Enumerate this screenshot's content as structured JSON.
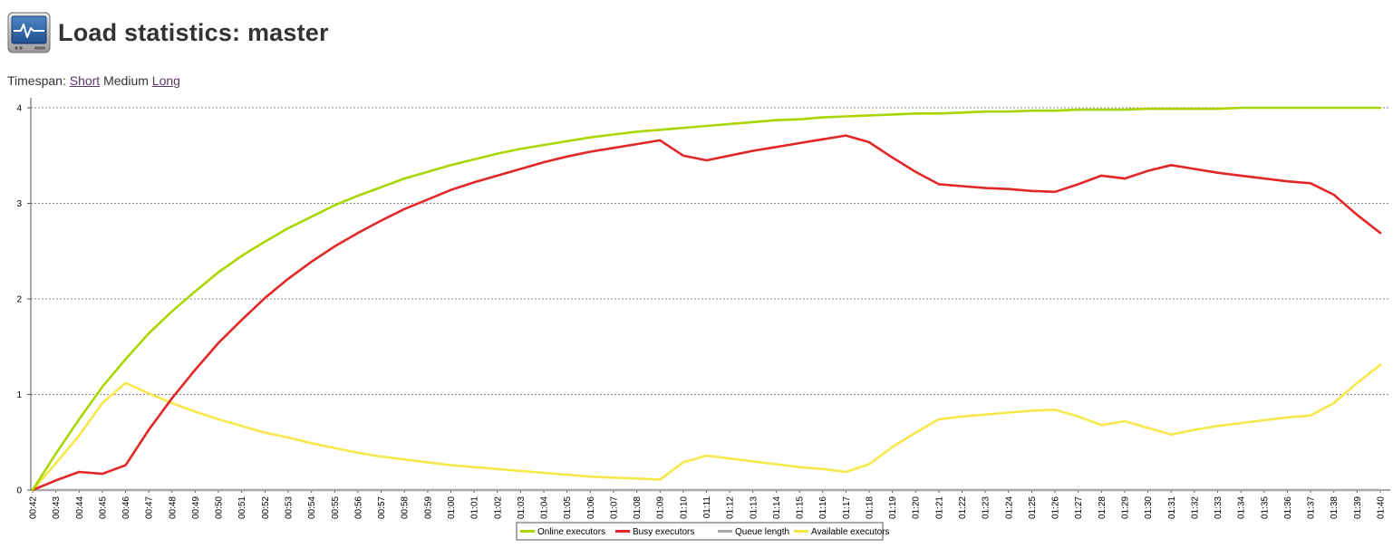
{
  "header": {
    "title": "Load statistics: master",
    "icon": "monitor-pulse-icon"
  },
  "timespan": {
    "label": "Timespan:",
    "options": [
      {
        "label": "Short",
        "link": true
      },
      {
        "label": "Medium",
        "link": false
      },
      {
        "label": "Long",
        "link": true
      }
    ],
    "selected": "Medium"
  },
  "chart_data": {
    "type": "line",
    "ylim": [
      0,
      4
    ],
    "yticks": [
      "0",
      "1",
      "2",
      "3",
      "4"
    ],
    "grid": true,
    "legend_position": "bottom",
    "categories": [
      "00:42",
      "00:43",
      "00:44",
      "00:45",
      "00:46",
      "00:47",
      "00:48",
      "00:49",
      "00:50",
      "00:51",
      "00:52",
      "00:53",
      "00:54",
      "00:55",
      "00:56",
      "00:57",
      "00:58",
      "00:59",
      "01:00",
      "01:01",
      "01:02",
      "01:03",
      "01:04",
      "01:05",
      "01:06",
      "01:07",
      "01:08",
      "01:09",
      "01:10",
      "01:11",
      "01:12",
      "01:13",
      "01:14",
      "01:15",
      "01:16",
      "01:17",
      "01:18",
      "01:19",
      "01:20",
      "01:21",
      "01:22",
      "01:23",
      "01:24",
      "01:25",
      "01:26",
      "01:27",
      "01:28",
      "01:29",
      "01:30",
      "01:31",
      "01:32",
      "01:33",
      "01:34",
      "01:35",
      "01:36",
      "01:37",
      "01:38",
      "01:39",
      "01:40"
    ],
    "series": [
      {
        "name": "Online executors",
        "color": "#aad600",
        "values": [
          0,
          0.38,
          0.74,
          1.08,
          1.37,
          1.64,
          1.87,
          2.08,
          2.28,
          2.45,
          2.6,
          2.74,
          2.86,
          2.98,
          3.08,
          3.17,
          3.26,
          3.33,
          3.4,
          3.46,
          3.52,
          3.57,
          3.61,
          3.65,
          3.69,
          3.72,
          3.75,
          3.77,
          3.79,
          3.81,
          3.83,
          3.85,
          3.87,
          3.88,
          3.9,
          3.91,
          3.92,
          3.93,
          3.94,
          3.94,
          3.95,
          3.96,
          3.96,
          3.97,
          3.97,
          3.98,
          3.98,
          3.98,
          3.99,
          3.99,
          3.99,
          3.99,
          4,
          4,
          4,
          4,
          4,
          4,
          4
        ]
      },
      {
        "name": "Busy executors",
        "color": "#e12727",
        "values": [
          0,
          0.1,
          0.19,
          0.17,
          0.26,
          0.63,
          0.96,
          1.26,
          1.54,
          1.78,
          2.01,
          2.21,
          2.39,
          2.55,
          2.69,
          2.82,
          2.94,
          3.04,
          3.14,
          3.22,
          3.29,
          3.36,
          3.43,
          3.49,
          3.54,
          3.58,
          3.62,
          3.66,
          3.5,
          3.45,
          3.5,
          3.55,
          3.59,
          3.63,
          3.67,
          3.71,
          3.64,
          3.48,
          3.33,
          3.2,
          3.18,
          3.16,
          3.15,
          3.13,
          3.12,
          3.2,
          3.29,
          3.26,
          3.34,
          3.4,
          3.36,
          3.32,
          3.29,
          3.26,
          3.23,
          3.21,
          3.09,
          2.88,
          2.69
        ]
      },
      {
        "name": "Queue length",
        "color": "#a9a9a9",
        "values": [
          0,
          0,
          0,
          0,
          0,
          0,
          0,
          0,
          0,
          0,
          0,
          0,
          0,
          0,
          0,
          0,
          0,
          0,
          0,
          0,
          0,
          0,
          0,
          0,
          0,
          0,
          0,
          0,
          0,
          0,
          0,
          0,
          0,
          0,
          0,
          0,
          0,
          0,
          0,
          0,
          0,
          0,
          0,
          0,
          0,
          0,
          0,
          0,
          0,
          0,
          0,
          0,
          0,
          0,
          0,
          0,
          0,
          0,
          0
        ]
      },
      {
        "name": "Available executors",
        "color": "#f6e84b",
        "values": [
          0,
          0.28,
          0.57,
          0.91,
          1.12,
          1.01,
          0.91,
          0.82,
          0.74,
          0.67,
          0.6,
          0.55,
          0.49,
          0.44,
          0.39,
          0.35,
          0.32,
          0.29,
          0.26,
          0.24,
          0.22,
          0.2,
          0.18,
          0.16,
          0.14,
          0.13,
          0.12,
          0.11,
          0.29,
          0.36,
          0.33,
          0.3,
          0.27,
          0.24,
          0.22,
          0.19,
          0.27,
          0.45,
          0.6,
          0.74,
          0.77,
          0.79,
          0.81,
          0.83,
          0.84,
          0.77,
          0.68,
          0.72,
          0.65,
          0.58,
          0.63,
          0.67,
          0.7,
          0.73,
          0.76,
          0.78,
          0.91,
          1.12,
          1.31
        ]
      }
    ]
  }
}
